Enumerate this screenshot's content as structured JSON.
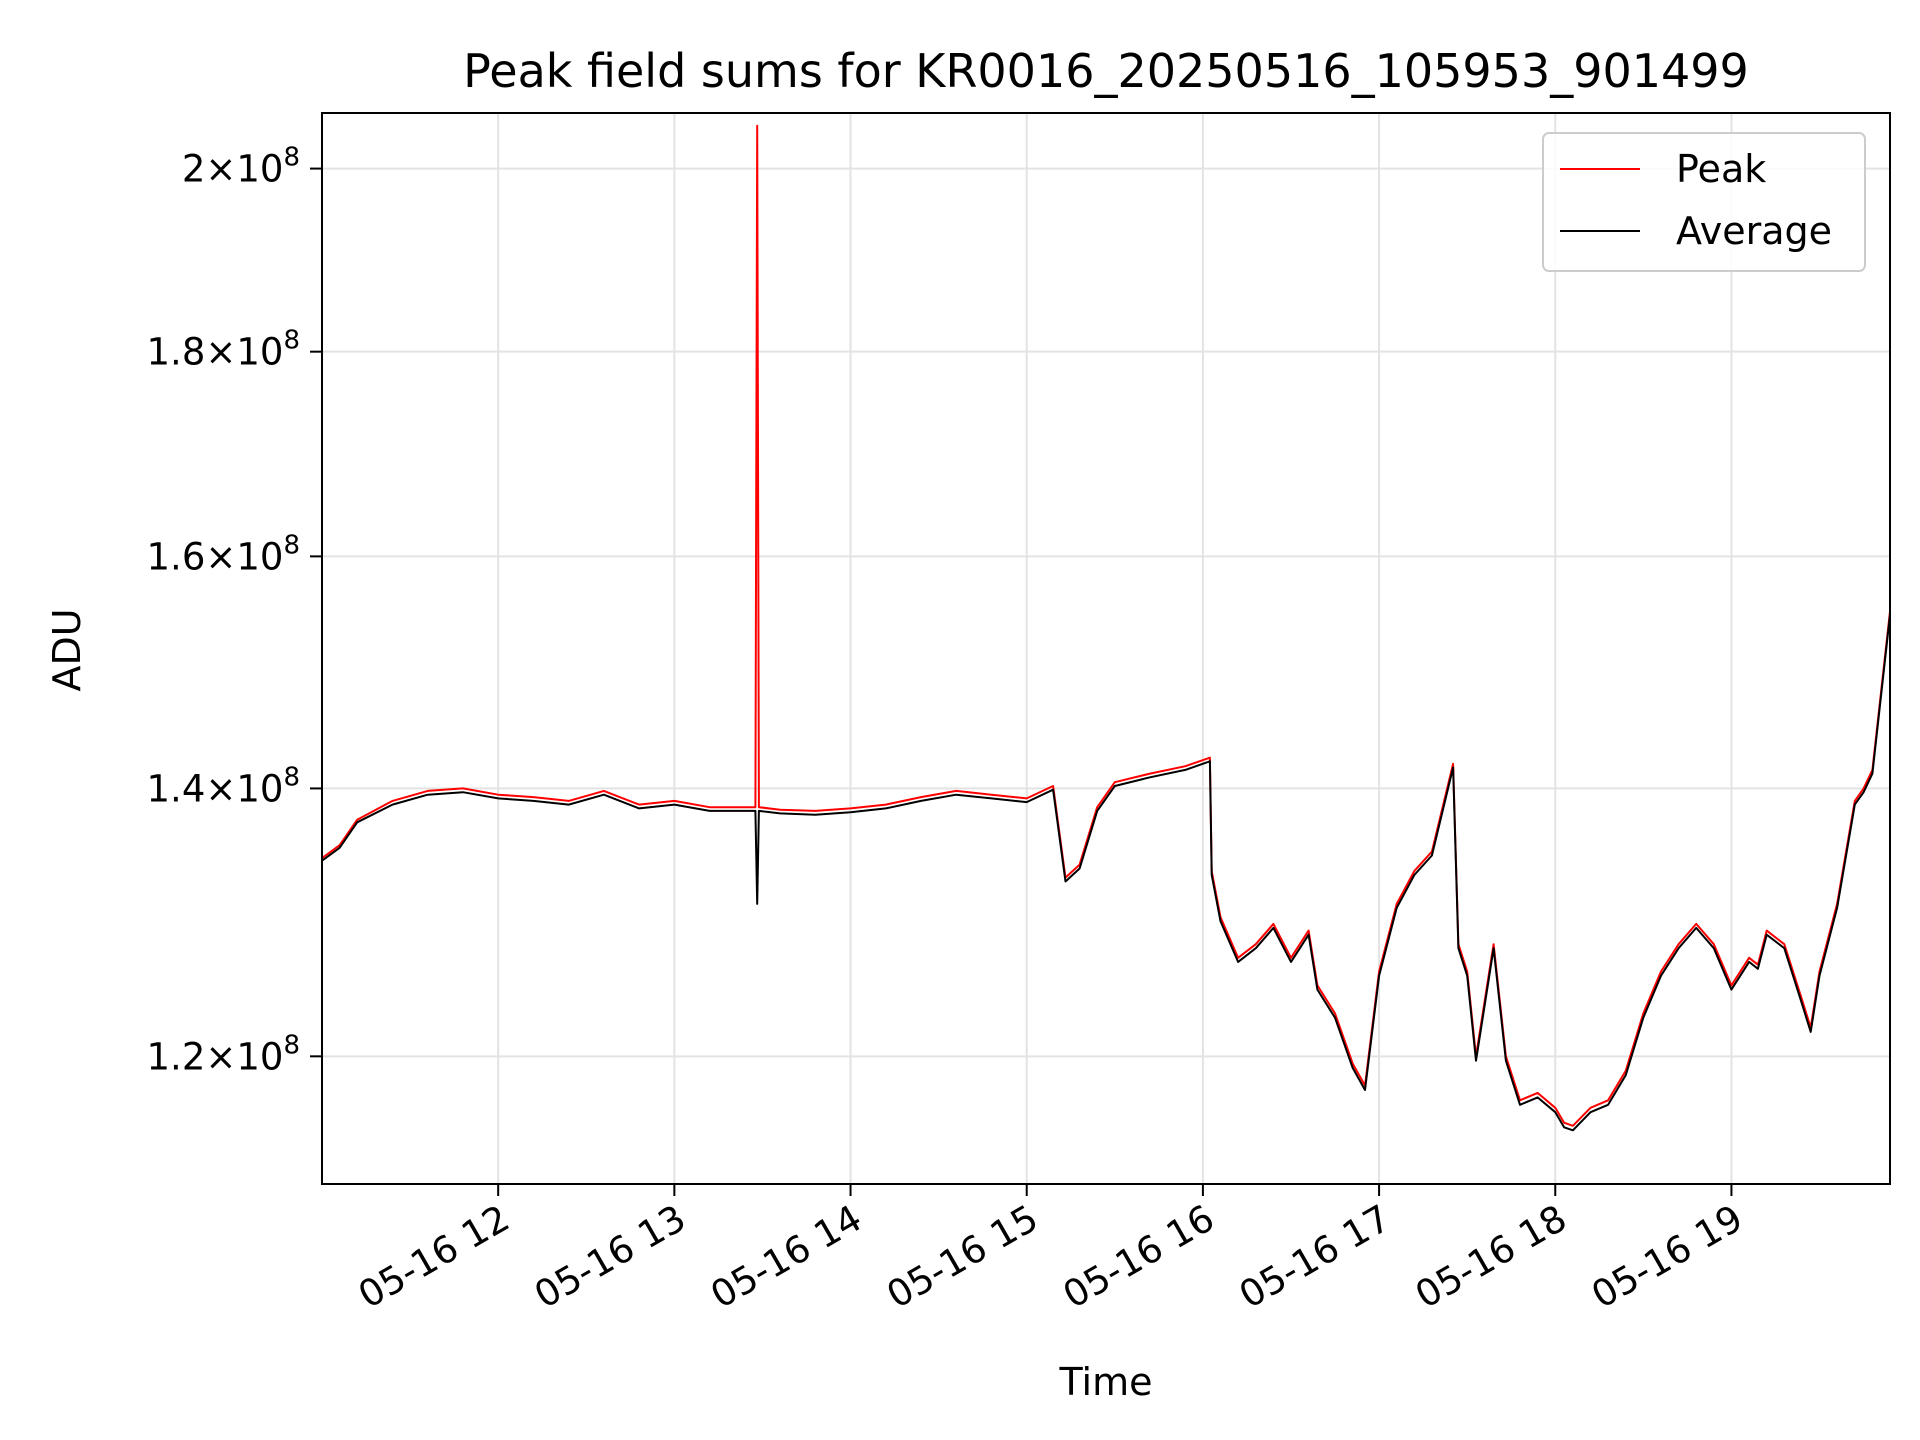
{
  "chart_data": {
    "type": "line",
    "title": "Peak field sums for KR0016_20250516_105953_901499",
    "xlabel": "Time",
    "ylabel": "ADU",
    "xlim": [
      11.0,
      19.9
    ],
    "ylim": [
      111500000.0,
      206500000.0
    ],
    "yscale": "log",
    "grid": true,
    "legend_position": "top-right",
    "x_ticks": [
      {
        "value": 12,
        "label": "05-16 12"
      },
      {
        "value": 13,
        "label": "05-16 13"
      },
      {
        "value": 14,
        "label": "05-16 14"
      },
      {
        "value": 15,
        "label": "05-16 15"
      },
      {
        "value": 16,
        "label": "05-16 16"
      },
      {
        "value": 17,
        "label": "05-16 17"
      },
      {
        "value": 18,
        "label": "05-16 18"
      },
      {
        "value": 19,
        "label": "05-16 19"
      }
    ],
    "y_ticks": [
      {
        "value": 120000000,
        "mant": "1.2",
        "exp": "8"
      },
      {
        "value": 140000000,
        "mant": "1.4",
        "exp": "8"
      },
      {
        "value": 160000000,
        "mant": "1.6",
        "exp": "8"
      },
      {
        "value": 180000000,
        "mant": "1.8",
        "exp": "8"
      },
      {
        "value": 200000000,
        "mant": "2",
        "exp": "8"
      }
    ],
    "series": [
      {
        "name": "Peak",
        "color": "#ff0000",
        "x": [
          11.0,
          11.1,
          11.2,
          11.4,
          11.6,
          11.8,
          12.0,
          12.2,
          12.4,
          12.6,
          12.8,
          13.0,
          13.2,
          13.46,
          13.47,
          13.48,
          13.6,
          13.8,
          14.0,
          14.2,
          14.4,
          14.6,
          14.8,
          15.0,
          15.15,
          15.22,
          15.3,
          15.4,
          15.5,
          15.7,
          15.9,
          16.04,
          16.05,
          16.1,
          16.2,
          16.3,
          16.4,
          16.5,
          16.6,
          16.65,
          16.75,
          16.85,
          16.92,
          17.0,
          17.1,
          17.2,
          17.3,
          17.42,
          17.45,
          17.5,
          17.55,
          17.65,
          17.72,
          17.8,
          17.9,
          18.0,
          18.05,
          18.1,
          18.2,
          18.3,
          18.4,
          18.5,
          18.6,
          18.7,
          18.8,
          18.9,
          19.0,
          19.1,
          19.15,
          19.2,
          19.3,
          19.4,
          19.45,
          19.5,
          19.6,
          19.7,
          19.75,
          19.8,
          19.9
        ],
        "y": [
          134500000,
          135500000,
          137500000,
          139000000,
          139800000,
          140000000,
          139500000,
          139300000,
          139000000,
          139800000,
          138700000,
          139000000,
          138500000,
          138500000,
          205000000,
          138500000,
          138300000,
          138200000,
          138400000,
          138700000,
          139300000,
          139800000,
          139500000,
          139200000,
          140200000,
          133000000,
          134000000,
          138500000,
          140500000,
          141200000,
          141800000,
          142500000,
          133500000,
          130000000,
          127000000,
          128000000,
          129500000,
          127000000,
          129000000,
          125000000,
          123000000,
          119500000,
          118000000,
          126000000,
          131000000,
          133500000,
          135000000,
          142000000,
          128000000,
          126000000,
          120000000,
          128000000,
          120000000,
          117000000,
          117500000,
          116500000,
          115500000,
          115300000,
          116500000,
          117000000,
          119000000,
          123000000,
          126000000,
          128000000,
          129500000,
          128000000,
          125000000,
          127000000,
          126500000,
          129000000,
          128000000,
          124000000,
          122000000,
          126000000,
          131000000,
          139000000,
          140000000,
          141500000,
          155000000
        ]
      },
      {
        "name": "Average",
        "color": "#000000",
        "x": [
          11.0,
          11.1,
          11.2,
          11.4,
          11.6,
          11.8,
          12.0,
          12.2,
          12.4,
          12.6,
          12.8,
          13.0,
          13.2,
          13.46,
          13.47,
          13.48,
          13.6,
          13.8,
          14.0,
          14.2,
          14.4,
          14.6,
          14.8,
          15.0,
          15.15,
          15.22,
          15.3,
          15.4,
          15.5,
          15.7,
          15.9,
          16.04,
          16.05,
          16.1,
          16.2,
          16.3,
          16.4,
          16.5,
          16.6,
          16.65,
          16.75,
          16.85,
          16.92,
          17.0,
          17.1,
          17.2,
          17.3,
          17.42,
          17.45,
          17.5,
          17.55,
          17.65,
          17.72,
          17.8,
          17.9,
          18.0,
          18.05,
          18.1,
          18.2,
          18.3,
          18.4,
          18.5,
          18.6,
          18.7,
          18.8,
          18.9,
          19.0,
          19.1,
          19.15,
          19.2,
          19.3,
          19.4,
          19.45,
          19.5,
          19.6,
          19.7,
          19.75,
          19.8,
          19.9
        ],
        "y": [
          134300000,
          135300000,
          137300000,
          138700000,
          139500000,
          139700000,
          139200000,
          139000000,
          138700000,
          139500000,
          138400000,
          138700000,
          138200000,
          138200000,
          131000000,
          138200000,
          138000000,
          137900000,
          138100000,
          138400000,
          139000000,
          139500000,
          139200000,
          138900000,
          139900000,
          132700000,
          133700000,
          138200000,
          140200000,
          140900000,
          141500000,
          142200000,
          133200000,
          129700000,
          126700000,
          127700000,
          129200000,
          126700000,
          128700000,
          124700000,
          122700000,
          119200000,
          117700000,
          125700000,
          130700000,
          133200000,
          134700000,
          141700000,
          127700000,
          125700000,
          119700000,
          127700000,
          119700000,
          116700000,
          117200000,
          116200000,
          115200000,
          115000000,
          116200000,
          116700000,
          118700000,
          122700000,
          125700000,
          127700000,
          129200000,
          127700000,
          124700000,
          126700000,
          126200000,
          128700000,
          127700000,
          123700000,
          121700000,
          125700000,
          130700000,
          138700000,
          139700000,
          141200000,
          154700000
        ]
      }
    ]
  }
}
